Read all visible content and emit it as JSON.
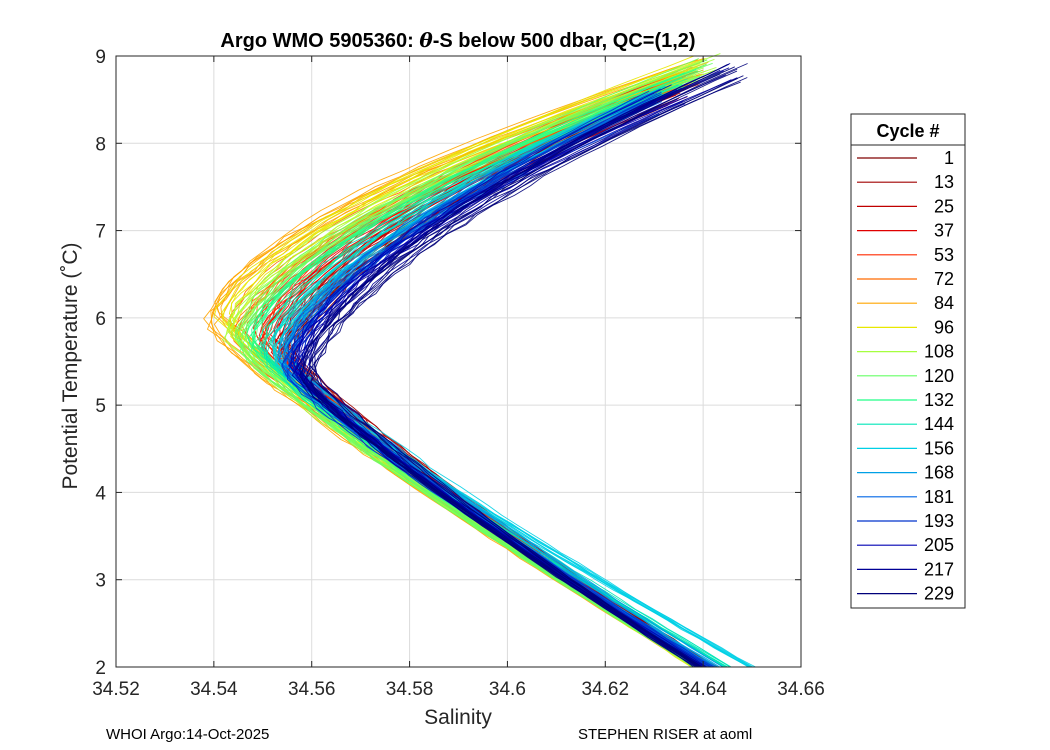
{
  "chart_data": {
    "type": "line",
    "title_prefix": "Argo WMO 5905360: ",
    "title_theta": "θ",
    "title_suffix": "-S below 500 dbar,  QC=(1,2)",
    "xlabel": "Salinity",
    "ylabel": "Potential Temperature (˚C)",
    "xlim": [
      34.52,
      34.66
    ],
    "ylim": [
      2,
      9
    ],
    "xticks": [
      "34.52",
      "34.54",
      "34.56",
      "34.58",
      "34.6",
      "34.62",
      "34.64",
      "34.66"
    ],
    "xtick_values": [
      34.52,
      34.54,
      34.56,
      34.58,
      34.6,
      34.62,
      34.64,
      34.66
    ],
    "yticks": [
      "2",
      "3",
      "4",
      "5",
      "6",
      "7",
      "8",
      "9"
    ],
    "ytick_values": [
      2,
      3,
      4,
      5,
      6,
      7,
      8,
      9
    ],
    "grid": true,
    "legend_title": "Cycle #",
    "legend_position": "right",
    "series": [
      {
        "name": "1",
        "color": "#800000",
        "s_min": 34.555,
        "t_min": 5.55,
        "s_bottom": 34.642,
        "s_top": 34.633,
        "t_top": 8.55
      },
      {
        "name": "13",
        "color": "#a00000",
        "s_min": 34.554,
        "t_min": 5.6,
        "s_bottom": 34.6415,
        "s_top": 34.634,
        "t_top": 8.6
      },
      {
        "name": "25",
        "color": "#c00000",
        "s_min": 34.553,
        "t_min": 5.65,
        "s_bottom": 34.641,
        "s_top": 34.635,
        "t_top": 8.65
      },
      {
        "name": "37",
        "color": "#e00000",
        "s_min": 34.551,
        "t_min": 5.7,
        "s_bottom": 34.6405,
        "s_top": 34.636,
        "t_top": 8.7
      },
      {
        "name": "53",
        "color": "#ff2a00",
        "s_min": 34.549,
        "t_min": 5.75,
        "s_bottom": 34.64,
        "s_top": 34.637,
        "t_top": 8.75
      },
      {
        "name": "72",
        "color": "#ff6a00",
        "s_min": 34.545,
        "t_min": 5.85,
        "s_bottom": 34.6395,
        "s_top": 34.638,
        "t_top": 8.8
      },
      {
        "name": "84",
        "color": "#ffa500",
        "s_min": 34.54,
        "t_min": 6.0,
        "s_bottom": 34.639,
        "s_top": 34.639,
        "t_top": 8.85
      },
      {
        "name": "96",
        "color": "#e8e800",
        "s_min": 34.542,
        "t_min": 5.95,
        "s_bottom": 34.6385,
        "s_top": 34.64,
        "t_top": 8.88
      },
      {
        "name": "108",
        "color": "#a6ff3f",
        "s_min": 34.544,
        "t_min": 5.8,
        "s_bottom": 34.6385,
        "s_top": 34.642,
        "t_top": 8.92
      },
      {
        "name": "120",
        "color": "#66ff66",
        "s_min": 34.546,
        "t_min": 5.7,
        "s_bottom": 34.639,
        "s_top": 34.64,
        "t_top": 8.85
      },
      {
        "name": "132",
        "color": "#22ff88",
        "s_min": 34.548,
        "t_min": 5.65,
        "s_bottom": 34.64,
        "s_top": 34.637,
        "t_top": 8.75
      },
      {
        "name": "144",
        "color": "#00e6b8",
        "s_min": 34.551,
        "t_min": 5.6,
        "s_bottom": 34.645,
        "s_top": 34.633,
        "t_top": 8.6
      },
      {
        "name": "156",
        "color": "#00d0e6",
        "s_min": 34.553,
        "t_min": 5.55,
        "s_bottom": 34.65,
        "s_top": 34.63,
        "t_top": 8.5
      },
      {
        "name": "168",
        "color": "#00a0e6",
        "s_min": 34.554,
        "t_min": 5.5,
        "s_bottom": 34.643,
        "s_top": 34.629,
        "t_top": 8.45
      },
      {
        "name": "181",
        "color": "#0066e6",
        "s_min": 34.555,
        "t_min": 5.45,
        "s_bottom": 34.642,
        "s_top": 34.63,
        "t_top": 8.45
      },
      {
        "name": "193",
        "color": "#0033cc",
        "s_min": 34.556,
        "t_min": 5.4,
        "s_bottom": 34.641,
        "s_top": 34.631,
        "t_top": 8.5
      },
      {
        "name": "205",
        "color": "#0000b4",
        "s_min": 34.557,
        "t_min": 5.4,
        "s_bottom": 34.64,
        "s_top": 34.635,
        "t_top": 8.55
      },
      {
        "name": "217",
        "color": "#000096",
        "s_min": 34.558,
        "t_min": 5.35,
        "s_bottom": 34.6395,
        "s_top": 34.645,
        "t_top": 8.8
      },
      {
        "name": "229",
        "color": "#00007a",
        "s_min": 34.559,
        "t_min": 5.35,
        "s_bottom": 34.639,
        "s_top": 34.647,
        "t_top": 8.82
      }
    ]
  },
  "footer": {
    "left": "WHOI Argo:14-Oct-2025",
    "right": "STEPHEN RISER at aoml"
  }
}
